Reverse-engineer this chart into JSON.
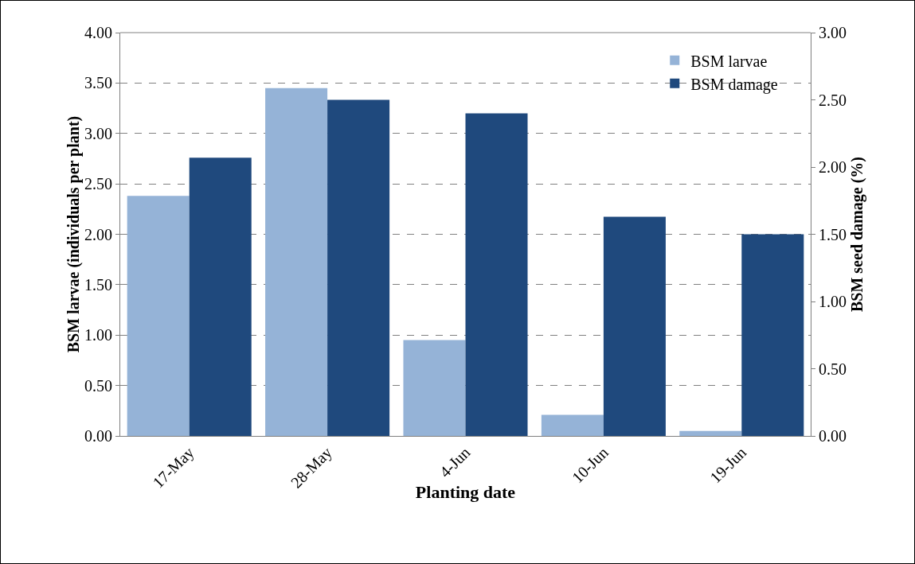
{
  "chart_data": {
    "type": "bar",
    "xlabel": "Planting date",
    "ylabel": "BSM larvae (individuals per plant)",
    "y2label": "BSM seed damage (%)",
    "categories": [
      "17-May",
      "28-May",
      "4-Jun",
      "10-Jun",
      "19-Jun"
    ],
    "series": [
      {
        "name": "BSM larvae",
        "color": "#95b3d7",
        "values": [
          2.38,
          3.45,
          0.95,
          0.21,
          0.05
        ]
      },
      {
        "name": "BSM damage",
        "color": "#1f497d",
        "values": [
          2.07,
          2.5,
          2.4,
          1.63,
          1.5
        ],
        "axis": "y2"
      }
    ],
    "ylim": [
      0,
      4
    ],
    "yticks": [
      {
        "value": 0,
        "label": "0.00"
      },
      {
        "value": 0.5,
        "label": "0.50"
      },
      {
        "value": 1,
        "label": "1.00"
      },
      {
        "value": 1.5,
        "label": "1.50"
      },
      {
        "value": 2,
        "label": "2.00"
      },
      {
        "value": 2.5,
        "label": "2.50"
      },
      {
        "value": 3,
        "label": "3.00"
      },
      {
        "value": 3.5,
        "label": "3.50"
      },
      {
        "value": 4,
        "label": "4.00"
      }
    ],
    "y2lim": [
      0,
      3
    ],
    "y2ticks": [
      {
        "value": 0,
        "label": "0.00"
      },
      {
        "value": 0.5,
        "label": "0.50"
      },
      {
        "value": 1,
        "label": "1.00"
      },
      {
        "value": 1.5,
        "label": "1.50"
      },
      {
        "value": 2,
        "label": "2.00"
      },
      {
        "value": 2.5,
        "label": "2.50"
      },
      {
        "value": 3,
        "label": "3.00"
      }
    ],
    "grid": "y",
    "legend": "top right"
  }
}
